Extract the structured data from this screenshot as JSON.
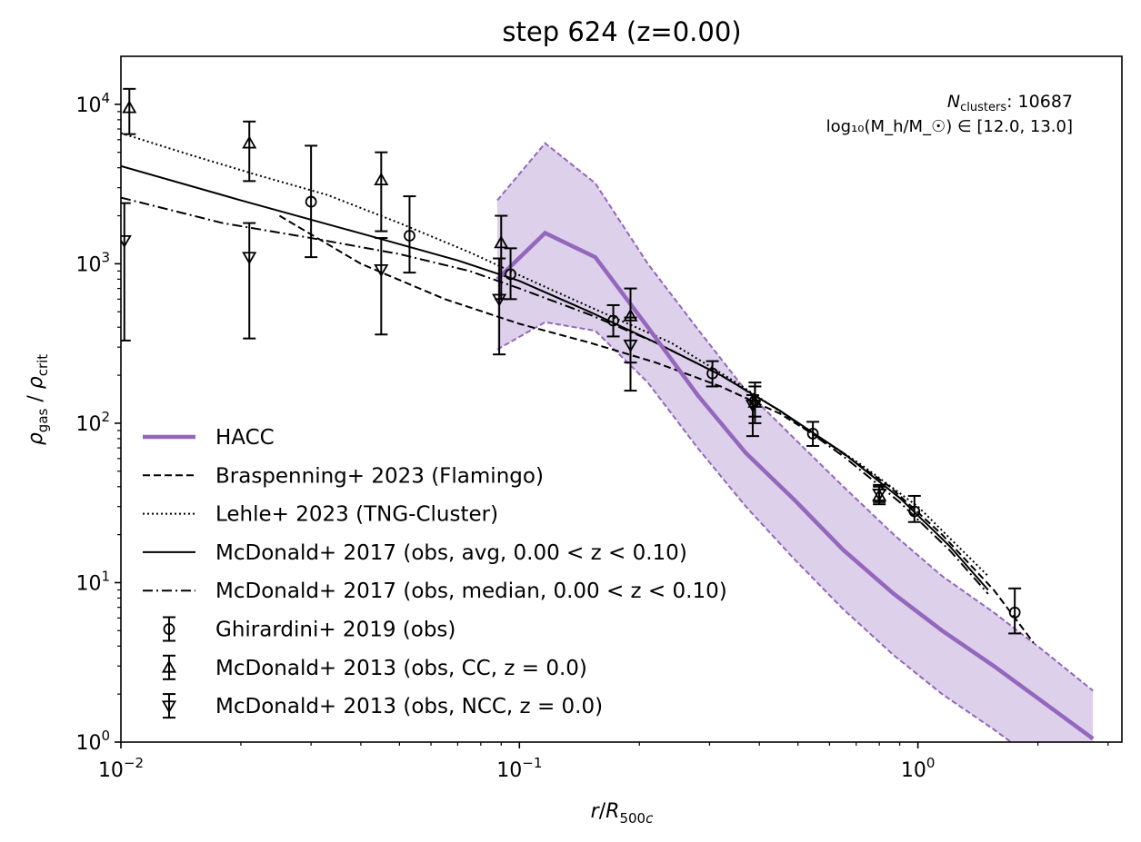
{
  "chart_data": {
    "type": "line",
    "title": "step 624 (z=0.00)",
    "xlabel": "r/R_500c",
    "ylabel": "ρ_gas / ρ_crit",
    "xscale": "log",
    "yscale": "log",
    "xlim": [
      0.01,
      3.25
    ],
    "ylim": [
      1,
      20000
    ],
    "grid": false,
    "legend_position": "lower-left",
    "x_ticks": [
      {
        "value": 0.01,
        "base": "10",
        "exp": "−2"
      },
      {
        "value": 0.1,
        "base": "10",
        "exp": "−1"
      },
      {
        "value": 1,
        "base": "10",
        "exp": "0"
      }
    ],
    "y_ticks": [
      {
        "value": 1,
        "base": "10",
        "exp": "0"
      },
      {
        "value": 10,
        "base": "10",
        "exp": "1"
      },
      {
        "value": 100,
        "base": "10",
        "exp": "2"
      },
      {
        "value": 1000,
        "base": "10",
        "exp": "3"
      },
      {
        "value": 10000,
        "base": "10",
        "exp": "4"
      }
    ],
    "annotation": {
      "line1_main": "N",
      "line1_sub": "clusters",
      "line1_value": ": 10687",
      "line2": "log₁₀(M_h/M_☉) ∈ [12.0, 13.0]"
    },
    "colors": {
      "hacc": "#9467bd",
      "hacc_band": "#dcd0ea",
      "black": "#000000"
    },
    "hacc": {
      "label": "HACC",
      "x": [
        0.088,
        0.116,
        0.155,
        0.21,
        0.28,
        0.37,
        0.49,
        0.65,
        0.87,
        1.15,
        1.55,
        2.05,
        2.75
      ],
      "median": [
        800,
        1560,
        1100,
        400,
        150,
        65,
        33,
        16,
        8.5,
        5.0,
        3.0,
        1.8,
        1.05
      ],
      "upper": [
        2500,
        5700,
        3200,
        1000,
        390,
        160,
        80,
        40,
        20,
        11,
        6.5,
        3.8,
        2.1
      ],
      "lower": [
        290,
        430,
        380,
        180,
        70,
        30,
        14,
        6.8,
        3.5,
        2.0,
        1.2,
        0.72,
        0.45
      ]
    },
    "lines": [
      {
        "name": "Braspenning+ 2023 (Flamingo)",
        "style": "dashed",
        "x": [
          0.025,
          0.04,
          0.065,
          0.1,
          0.15,
          0.22,
          0.32,
          0.45,
          0.62,
          0.85,
          1.15,
          1.55,
          1.95
        ],
        "y": [
          2000,
          1000,
          600,
          420,
          320,
          240,
          170,
          115,
          70,
          40,
          20,
          9,
          4.2
        ]
      },
      {
        "name": "Lehle+ 2023 (TNG-Cluster)",
        "style": "dotted",
        "x": [
          0.01,
          0.015,
          0.022,
          0.033,
          0.05,
          0.075,
          0.11,
          0.16,
          0.24,
          0.35,
          0.5,
          0.72,
          1.0,
          1.5
        ],
        "y": [
          6600,
          4800,
          3600,
          2700,
          1800,
          1180,
          760,
          500,
          320,
          180,
          100,
          55,
          30,
          11
        ]
      },
      {
        "name": "McDonald+ 2017 (obs, avg, 0.00 < z < 0.10)",
        "style": "solid",
        "x": [
          0.01,
          0.02,
          0.04,
          0.07,
          0.1,
          0.15,
          0.22,
          0.32,
          0.45,
          0.65,
          0.9,
          1.2,
          1.5
        ],
        "y": [
          4100,
          2500,
          1550,
          1050,
          780,
          500,
          320,
          200,
          120,
          65,
          34,
          17,
          9
        ]
      },
      {
        "name": "McDonald+ 2017 (obs, median, 0.00 < z < 0.10)",
        "style": "dashdot",
        "x": [
          0.01,
          0.018,
          0.03,
          0.05,
          0.075,
          0.1,
          0.15,
          0.22,
          0.32,
          0.45,
          0.65,
          0.9,
          1.2,
          1.5
        ],
        "y": [
          2600,
          1800,
          1450,
          1150,
          900,
          700,
          480,
          320,
          200,
          120,
          62,
          32,
          16,
          8.5
        ]
      }
    ],
    "markers": [
      {
        "name": "Ghirardini+ 2019 (obs)",
        "marker": "circle",
        "x": [
          0.03,
          0.053,
          0.095,
          0.172,
          0.305,
          0.39,
          0.545,
          0.98,
          1.75
        ],
        "y": [
          2450,
          1500,
          860,
          440,
          205,
          138,
          86,
          28,
          6.5
        ],
        "lo": [
          1100,
          880,
          600,
          350,
          170,
          110,
          72,
          24,
          4.8
        ],
        "hi": [
          5500,
          2650,
          1250,
          550,
          245,
          170,
          102,
          35,
          9.2
        ]
      },
      {
        "name": "McDonald+ 2013 (obs, CC, z = 0.0)",
        "marker": "triangle-up",
        "x": [
          0.0105,
          0.021,
          0.045,
          0.09,
          0.19,
          0.39,
          0.8
        ],
        "y": [
          9500,
          5700,
          3350,
          1350,
          470,
          135,
          35
        ],
        "lo": [
          6500,
          3300,
          1600,
          600,
          240,
          100,
          31
        ],
        "hi": [
          12500,
          7800,
          5000,
          2000,
          700,
          180,
          40
        ]
      },
      {
        "name": "McDonald+ 2013 (obs, NCC, z = 0.0)",
        "marker": "triangle-down",
        "x": [
          0.0102,
          0.021,
          0.045,
          0.089,
          0.19,
          0.385,
          0.8
        ],
        "y": [
          1400,
          1100,
          920,
          600,
          310,
          130,
          36
        ],
        "lo": [
          330,
          340,
          360,
          270,
          160,
          83,
          32
        ],
        "hi": [
          2400,
          1800,
          1450,
          1080,
          460,
          150,
          41
        ]
      }
    ]
  }
}
